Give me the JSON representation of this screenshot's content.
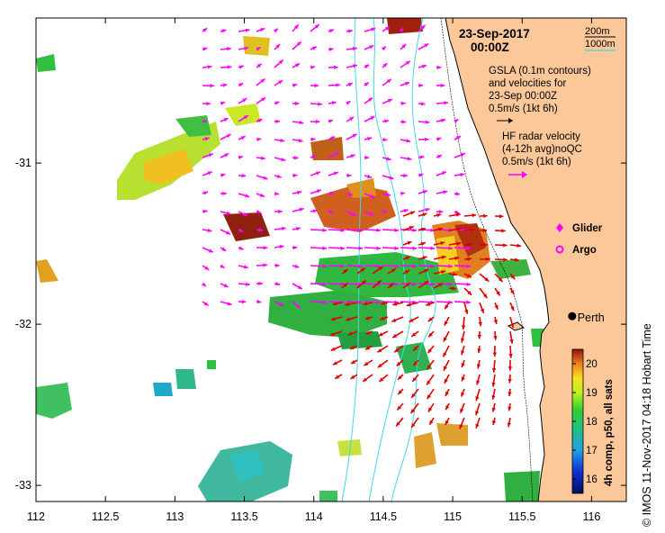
{
  "map": {
    "x_ticks": [
      "112",
      "112.5",
      "113",
      "113.5",
      "114",
      "114.5",
      "115",
      "115.5",
      "116"
    ],
    "y_ticks": [
      "-31",
      "-32",
      "-33"
    ],
    "lon_range": [
      112,
      116.25
    ],
    "lat_range": [
      -33.1,
      -30.1
    ]
  },
  "title": {
    "date": "23-Sep-2017",
    "time": "00:00Z"
  },
  "depth_legend": {
    "label_200": "200m",
    "label_1000": "1000m",
    "color_200": "#000000",
    "color_1000": "#40d8e8"
  },
  "legend": {
    "gsla_lines": [
      "GSLA (0.1m contours)",
      "and velocities for",
      "23-Sep 00:00Z"
    ],
    "gsla_scale": "0.5m/s (1kt 6h)",
    "hf_lines": [
      "HF radar velocity",
      "(4-12h avg)noQC"
    ],
    "hf_scale": "0.5m/s (1kt 6h)",
    "glider_label": "Glider",
    "argo_label": "Argo"
  },
  "city": {
    "name": "Perth",
    "lon": 115.86,
    "lat": -31.95
  },
  "colorbar": {
    "ticks": [
      "20",
      "19",
      "18",
      "17",
      "16"
    ],
    "title": "4h comp, p50, all sats",
    "range": [
      15.5,
      20.5
    ]
  },
  "colors": {
    "land": "#fcc89a",
    "isobath_1000": "#40d8e8",
    "gsla_arrows": "#ff00ff",
    "hf_arrows": "#e00000"
  },
  "copyright": "© IMOS 11-Nov-2017 04:18 Hobart Time"
}
